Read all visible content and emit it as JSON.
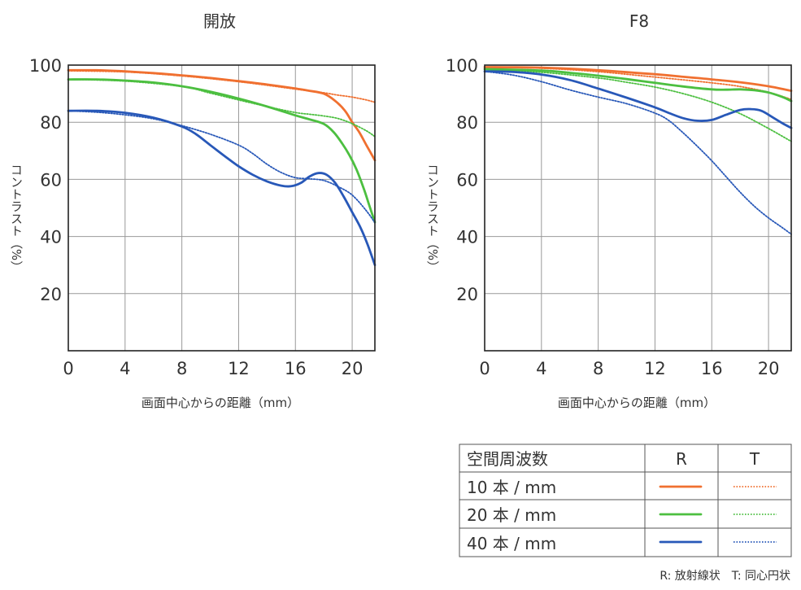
{
  "chart_data": [
    {
      "type": "line",
      "title": "開放",
      "xlabel": "画面中心からの距離（mm）",
      "ylabel": "コントラスト（%）",
      "xlim": [
        0,
        21.6
      ],
      "ylim": [
        0,
        100
      ],
      "x_ticks": [
        "0",
        "4",
        "8",
        "12",
        "16",
        "20"
      ],
      "y_ticks": [
        "100",
        "80",
        "60",
        "40",
        "20"
      ],
      "grid": true,
      "series": [
        {
          "name": "10 本 / mm R",
          "color": "#f07030",
          "style": "solid",
          "x": [
            0,
            2,
            4,
            6,
            8,
            10,
            12,
            14,
            16,
            17,
            18,
            18.8,
            19.5,
            20,
            20.5,
            21,
            21.6
          ],
          "y": [
            98.2,
            98.2,
            97.8,
            97.2,
            96.4,
            95.5,
            94.4,
            93.2,
            91.8,
            91.0,
            90.0,
            87.5,
            84.0,
            80.0,
            76.5,
            72.0,
            66.7
          ]
        },
        {
          "name": "10 本 / mm T",
          "color": "#f07030",
          "style": "dotted",
          "x": [
            0,
            4,
            8,
            12,
            16,
            18,
            19,
            20,
            21,
            21.6
          ],
          "y": [
            98.0,
            97.6,
            96.2,
            94.2,
            91.6,
            90.3,
            89.5,
            88.8,
            87.8,
            87.0
          ]
        },
        {
          "name": "20 本 / mm R",
          "color": "#4cbf40",
          "style": "solid",
          "x": [
            0,
            2,
            4,
            6,
            8,
            10,
            12,
            14,
            16,
            17,
            18,
            18.7,
            19.3,
            19.8,
            20.3,
            20.8,
            21.2,
            21.6
          ],
          "y": [
            95.0,
            95.0,
            94.6,
            93.9,
            92.6,
            90.7,
            88.3,
            85.5,
            82.4,
            81.0,
            79.4,
            76.5,
            72.5,
            68.5,
            63.5,
            57.0,
            51.0,
            45.0
          ]
        },
        {
          "name": "20 本 / mm T",
          "color": "#4cbf40",
          "style": "dotted",
          "x": [
            0,
            4,
            8,
            10,
            12,
            14,
            16,
            17,
            18,
            19,
            20,
            21,
            21.6
          ],
          "y": [
            95.0,
            94.4,
            92.5,
            90.2,
            87.8,
            85.5,
            83.4,
            82.8,
            82.2,
            81.3,
            79.5,
            77.0,
            75.0
          ]
        },
        {
          "name": "40 本 / mm R",
          "color": "#2858b8",
          "style": "solid",
          "x": [
            0,
            2,
            4,
            6,
            8,
            9,
            10,
            11,
            12,
            13,
            14,
            15,
            15.7,
            16.4,
            17,
            17.6,
            18.2,
            18.8,
            19.4,
            20,
            20.6,
            21.1,
            21.6
          ],
          "y": [
            84.0,
            84.0,
            83.3,
            81.6,
            78.5,
            75.8,
            72.0,
            68.2,
            64.6,
            61.6,
            59.3,
            57.8,
            57.6,
            58.8,
            61.0,
            62.2,
            61.6,
            58.8,
            54.0,
            48.5,
            43.0,
            37.0,
            30.0
          ]
        },
        {
          "name": "40 本 / mm T",
          "color": "#2858b8",
          "style": "dotted",
          "x": [
            0,
            2,
            4,
            6,
            8,
            10,
            12,
            13,
            14,
            15,
            16,
            17,
            18,
            19,
            20,
            21,
            21.6
          ],
          "y": [
            84.0,
            83.5,
            82.6,
            81.2,
            78.8,
            75.8,
            72.0,
            69.0,
            65.3,
            62.4,
            60.6,
            60.2,
            59.6,
            57.5,
            54.5,
            49.0,
            44.8
          ]
        }
      ]
    },
    {
      "type": "line",
      "title": "F8",
      "xlabel": "画面中心からの距離（mm）",
      "ylabel": "コントラスト（%）",
      "xlim": [
        0,
        21.6
      ],
      "ylim": [
        0,
        100
      ],
      "x_ticks": [
        "0",
        "4",
        "8",
        "12",
        "16",
        "20"
      ],
      "y_ticks": [
        "100",
        "80",
        "60",
        "40",
        "20"
      ],
      "grid": true,
      "series": [
        {
          "name": "10 本 / mm R",
          "color": "#f07030",
          "style": "solid",
          "x": [
            0,
            4,
            8,
            12,
            14,
            16,
            18,
            20,
            21.6
          ],
          "y": [
            99.3,
            99.1,
            98.2,
            96.8,
            95.9,
            95.0,
            94.0,
            92.6,
            91.0
          ]
        },
        {
          "name": "10 本 / mm T",
          "color": "#f07030",
          "style": "dotted",
          "x": [
            0,
            4,
            8,
            12,
            16,
            18,
            20,
            21.6
          ],
          "y": [
            99.3,
            98.9,
            97.7,
            95.8,
            93.8,
            92.5,
            90.5,
            88.0
          ]
        },
        {
          "name": "20 本 / mm R",
          "color": "#4cbf40",
          "style": "solid",
          "x": [
            0,
            4,
            6,
            8,
            10,
            12,
            14,
            16,
            17,
            18,
            19,
            20,
            21,
            21.6
          ],
          "y": [
            98.6,
            98.1,
            97.3,
            96.3,
            95.1,
            93.8,
            92.5,
            91.5,
            91.4,
            91.5,
            91.2,
            90.4,
            88.8,
            87.4
          ]
        },
        {
          "name": "20 本 / mm T",
          "color": "#4cbf40",
          "style": "dotted",
          "x": [
            0,
            4,
            8,
            10,
            12,
            14,
            16,
            18,
            20,
            21.6
          ],
          "y": [
            98.6,
            97.5,
            95.5,
            94.0,
            92.3,
            90.0,
            87.0,
            83.0,
            77.8,
            73.3
          ]
        },
        {
          "name": "40 本 / mm R",
          "color": "#2858b8",
          "style": "solid",
          "x": [
            0,
            2,
            4,
            6,
            8,
            10,
            12,
            13,
            14,
            15,
            16,
            17,
            18,
            18.8,
            19.5,
            20.2,
            21,
            21.6
          ],
          "y": [
            97.8,
            97.6,
            96.7,
            94.8,
            91.8,
            88.6,
            85.2,
            83.2,
            81.4,
            80.5,
            80.8,
            82.6,
            84.3,
            84.6,
            84.0,
            82.0,
            79.6,
            78.0
          ]
        },
        {
          "name": "40 本 / mm T",
          "color": "#2858b8",
          "style": "dotted",
          "x": [
            0,
            2,
            4,
            6,
            8,
            10,
            12,
            13,
            14,
            15,
            16,
            17,
            18,
            19,
            20,
            21,
            21.6
          ],
          "y": [
            97.8,
            96.5,
            94.2,
            91.3,
            88.8,
            86.5,
            83.2,
            80.5,
            76.2,
            71.5,
            66.5,
            61.0,
            55.5,
            50.6,
            46.5,
            43.0,
            40.8
          ]
        }
      ]
    }
  ],
  "legend": {
    "header": [
      "空間周波数",
      "R",
      "T"
    ],
    "rows": [
      {
        "label": "10 本 / mm",
        "color": "#f07030"
      },
      {
        "label": "20 本 / mm",
        "color": "#4cbf40"
      },
      {
        "label": "40 本 / mm",
        "color": "#2858b8"
      }
    ],
    "note": "R: 放射線状　T: 同心円状"
  }
}
